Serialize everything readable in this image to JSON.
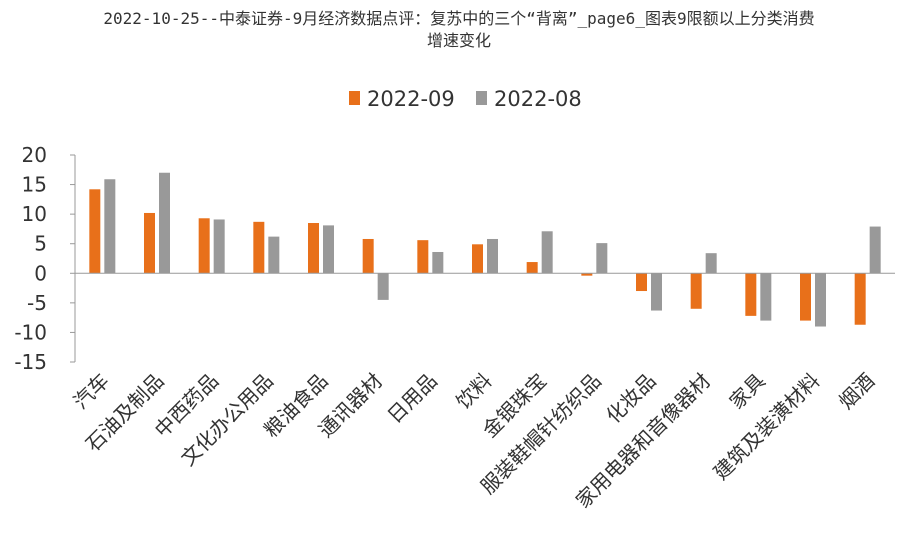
{
  "chart_data": {
    "type": "bar",
    "title_lines": [
      "2022-10-25--中泰证券-9月经济数据点评：复苏中的三个“背离”_page6_图表9限额以上分类消费",
      "增速变化"
    ],
    "categories": [
      "汽车",
      "石油及制品",
      "中西药品",
      "文化办公用品",
      "粮油食品",
      "通讯器材",
      "日用品",
      "饮料",
      "金银珠宝",
      "服装鞋帽针纺织品",
      "化妆品",
      "家用电器和音像器材",
      "家具",
      "建筑及装潢材料",
      "烟酒"
    ],
    "series": [
      {
        "name": "2022-09",
        "color": "#E8701A",
        "values": [
          14.2,
          10.2,
          9.3,
          8.7,
          8.5,
          5.8,
          5.6,
          4.9,
          1.9,
          -0.4,
          -3.0,
          -6.0,
          -7.2,
          -8.0,
          -8.7
        ]
      },
      {
        "name": "2022-08",
        "color": "#999999",
        "values": [
          15.9,
          17.0,
          9.1,
          6.2,
          8.1,
          -4.5,
          3.6,
          5.8,
          7.1,
          5.1,
          -6.3,
          3.4,
          -8.0,
          -9.0,
          7.9
        ]
      }
    ],
    "y_ticks": [
      "20",
      "15",
      "10",
      "5",
      "0",
      "-5",
      "-10",
      "-15"
    ],
    "ylim": [
      -15,
      20
    ],
    "legend_position": "top-center",
    "grid": false,
    "xlabel": "",
    "ylabel": ""
  }
}
